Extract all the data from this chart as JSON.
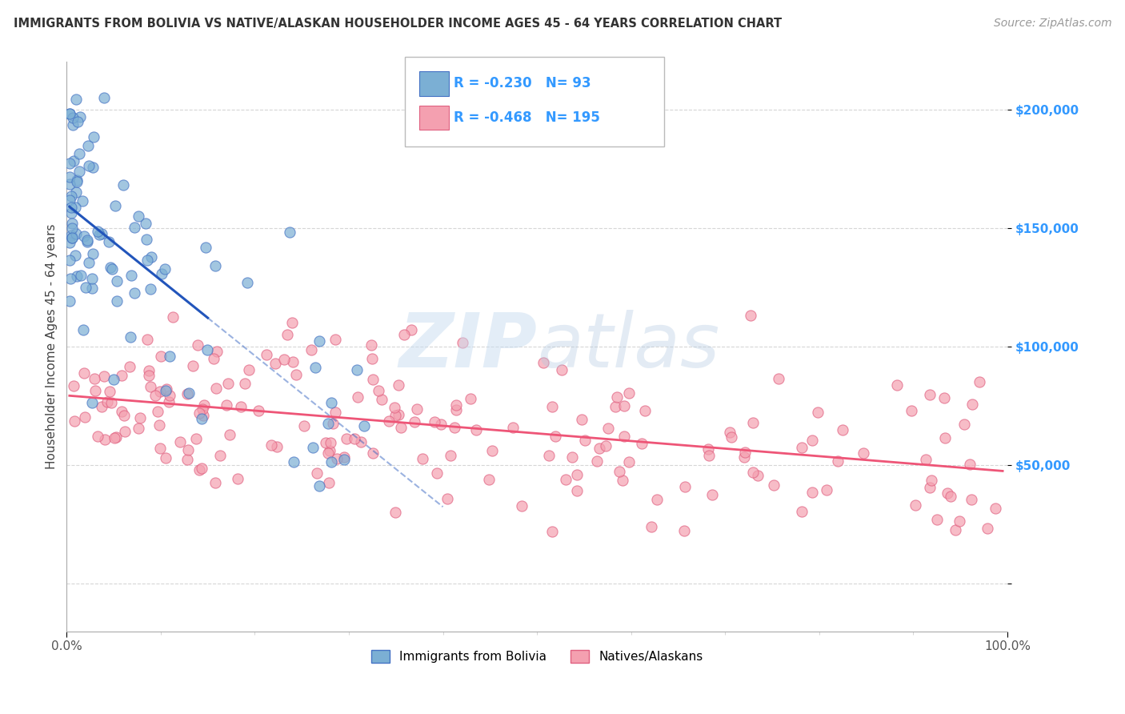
{
  "title": "IMMIGRANTS FROM BOLIVIA VS NATIVE/ALASKAN HOUSEHOLDER INCOME AGES 45 - 64 YEARS CORRELATION CHART",
  "source": "Source: ZipAtlas.com",
  "ylabel": "Householder Income Ages 45 - 64 years",
  "r_blue": -0.23,
  "n_blue": 93,
  "r_pink": -0.468,
  "n_pink": 195,
  "xlim": [
    0.0,
    100.0
  ],
  "ylim": [
    -20000,
    220000
  ],
  "yticks": [
    0,
    50000,
    100000,
    150000,
    200000
  ],
  "ytick_labels": [
    "",
    "$50,000",
    "$100,000",
    "$150,000",
    "$200,000"
  ],
  "xtick_labels": [
    "0.0%",
    "100.0%"
  ],
  "blue_color": "#7BAFD4",
  "pink_color": "#F4A0B0",
  "blue_edge_color": "#4472C4",
  "pink_edge_color": "#E06080",
  "blue_line_color": "#2255BB",
  "pink_line_color": "#EE5577",
  "legend_blue_label": "Immigrants from Bolivia",
  "legend_pink_label": "Natives/Alaskans",
  "background_color": "#FFFFFF",
  "grid_color": "#CCCCCC",
  "title_color": "#333333",
  "axis_label_color": "#3399FF",
  "watermark_color": "#C8DCF0"
}
